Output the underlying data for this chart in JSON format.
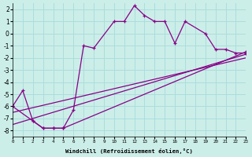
{
  "xlabel": "Windchill (Refroidissement éolien,°C)",
  "bg_color": "#cceee8",
  "grid_color": "#aadddd",
  "line_color": "#880088",
  "x_min": 0,
  "x_max": 23,
  "y_min": -8.5,
  "y_max": 2.5,
  "yticks": [
    -8,
    -7,
    -6,
    -5,
    -4,
    -3,
    -2,
    -1,
    0,
    1,
    2
  ],
  "xticks": [
    0,
    1,
    2,
    3,
    4,
    5,
    6,
    7,
    8,
    9,
    10,
    11,
    12,
    13,
    14,
    15,
    16,
    17,
    18,
    19,
    20,
    21,
    22,
    23
  ],
  "series": [
    {
      "x": [
        0,
        1,
        2,
        3,
        4,
        5,
        6,
        7,
        8,
        10,
        11,
        12,
        13,
        14,
        15,
        16,
        17,
        19,
        20,
        21,
        22,
        23
      ],
      "y": [
        -6.0,
        -4.7,
        -7.2,
        -7.8,
        -7.8,
        -7.8,
        -6.3,
        -1.0,
        -1.2,
        1.0,
        1.0,
        2.3,
        1.5,
        1.0,
        1.0,
        -0.8,
        1.0,
        0.0,
        -1.3,
        -1.3,
        -1.6,
        -1.6
      ],
      "markers": true
    },
    {
      "x": [
        0,
        23
      ],
      "y": [
        -6.5,
        -2.0
      ],
      "markers": false
    },
    {
      "x": [
        0,
        23
      ],
      "y": [
        -7.5,
        -1.7
      ],
      "markers": false
    },
    {
      "x": [
        0,
        2,
        3,
        4,
        5,
        23
      ],
      "y": [
        -6.0,
        -7.2,
        -7.8,
        -7.8,
        -7.8,
        -1.5
      ],
      "markers": true
    }
  ]
}
